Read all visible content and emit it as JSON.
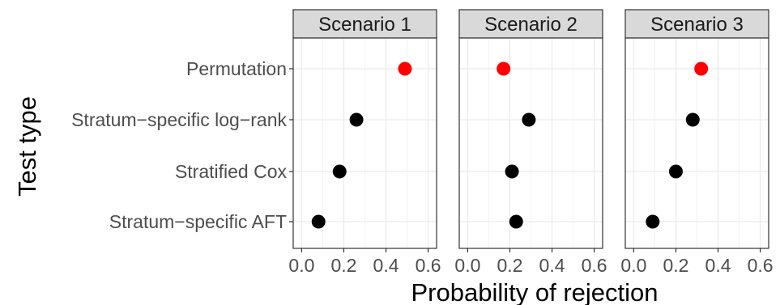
{
  "chart_data": {
    "type": "scatter",
    "xlabel": "Probability of rejection",
    "ylabel": "Test type",
    "categories": [
      "Permutation",
      "Stratum−specific log−rank",
      "Stratified Cox",
      "Stratum−specific AFT"
    ],
    "xlim": [
      -0.04,
      0.64
    ],
    "xticks": [
      0.0,
      0.2,
      0.4,
      0.6
    ],
    "xtick_labels": [
      "0.0",
      "0.2",
      "0.4",
      "0.6"
    ],
    "grid": true,
    "highlight_category": "Permutation",
    "colors": {
      "highlight": "#ff0000",
      "default": "#000000",
      "strip": "#d9d9d9",
      "grid": "#ebebeb"
    },
    "panels": [
      {
        "title": "Scenario 1",
        "values": [
          0.49,
          0.26,
          0.18,
          0.08
        ]
      },
      {
        "title": "Scenario 2",
        "values": [
          0.17,
          0.29,
          0.21,
          0.23
        ]
      },
      {
        "title": "Scenario 3",
        "values": [
          0.32,
          0.28,
          0.2,
          0.09
        ]
      }
    ]
  }
}
